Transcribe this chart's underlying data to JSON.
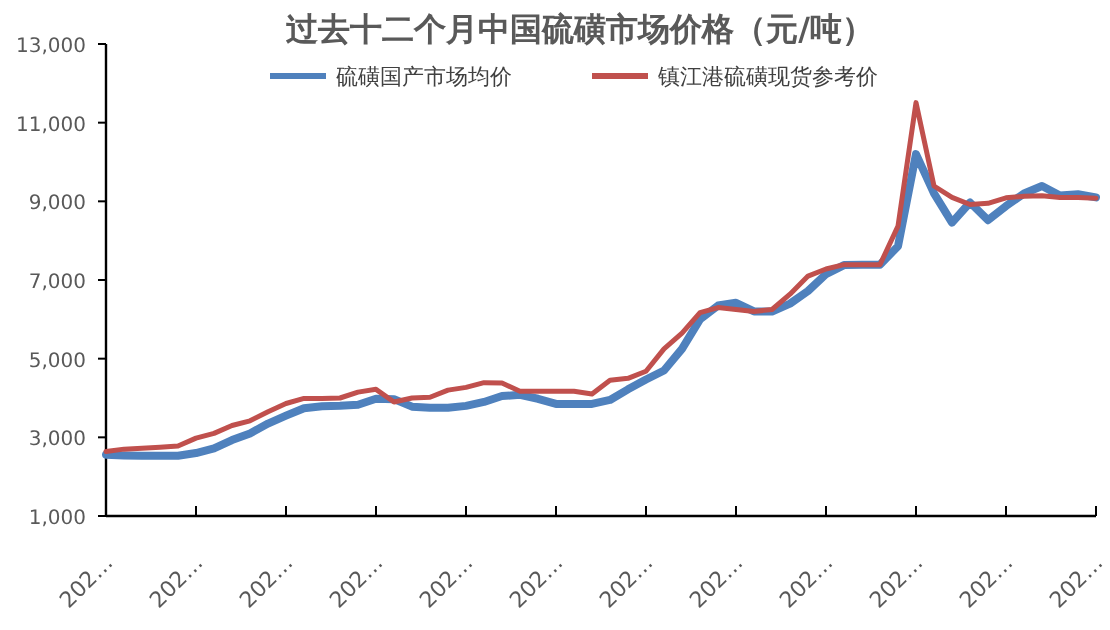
{
  "chart_data": {
    "type": "line",
    "title": "过去十二个月中国硫磺市场价格（元/吨）",
    "categories": [
      "202…",
      null,
      null,
      null,
      null,
      "202…",
      null,
      null,
      null,
      null,
      "202…",
      null,
      null,
      null,
      null,
      "202…",
      null,
      null,
      null,
      null,
      "202…",
      null,
      null,
      null,
      null,
      "202…",
      null,
      null,
      null,
      null,
      "202…",
      null,
      null,
      null,
      null,
      "202…",
      null,
      null,
      null,
      null,
      "202…",
      null,
      null,
      null,
      null,
      "202…",
      null,
      null,
      null,
      null,
      "202…",
      null,
      null,
      null,
      null,
      "202…"
    ],
    "series": [
      {
        "name": "硫磺国产市场均价",
        "color": "#4f81bd",
        "values": [
          2560,
          2540,
          2530,
          2530,
          2530,
          2600,
          2720,
          2930,
          3100,
          3350,
          3550,
          3740,
          3790,
          3800,
          3830,
          3980,
          3970,
          3780,
          3750,
          3750,
          3800,
          3900,
          4050,
          4080,
          3980,
          3850,
          3850,
          3850,
          3950,
          4220,
          4470,
          4700,
          5250,
          6000,
          6350,
          6420,
          6200,
          6200,
          6400,
          6720,
          7150,
          7380,
          7390,
          7390,
          7860,
          10200,
          9200,
          8460,
          8970,
          8520,
          8880,
          9200,
          9390,
          9150,
          9180,
          9100
        ]
      },
      {
        "name": "镇江港硫磺现货参考价",
        "color": "#c0504d",
        "values": [
          2640,
          2700,
          2720,
          2750,
          2780,
          2980,
          3100,
          3300,
          3420,
          3650,
          3860,
          3990,
          3990,
          4000,
          4150,
          4220,
          3900,
          4000,
          4020,
          4200,
          4270,
          4390,
          4380,
          4170,
          4170,
          4170,
          4170,
          4100,
          4450,
          4500,
          4680,
          5250,
          5650,
          6170,
          6300,
          6250,
          6200,
          6250,
          6640,
          7100,
          7280,
          7390,
          7390,
          7390,
          8370,
          11510,
          9390,
          9100,
          8920,
          8950,
          9090,
          9130,
          9140,
          9100,
          9100,
          9080
        ]
      }
    ],
    "ylim": [
      1000,
      13000
    ],
    "yticks": [
      {
        "value": 1000,
        "label": "1,000"
      },
      {
        "value": 3000,
        "label": "3,000"
      },
      {
        "value": 5000,
        "label": "5,000"
      },
      {
        "value": 7000,
        "label": "7,000"
      },
      {
        "value": 9000,
        "label": "9,000"
      },
      {
        "value": 11000,
        "label": "11,000"
      },
      {
        "value": 13000,
        "label": "13,000"
      }
    ],
    "grid": false,
    "legend": "top",
    "marker": "none",
    "line_style": "solid"
  }
}
